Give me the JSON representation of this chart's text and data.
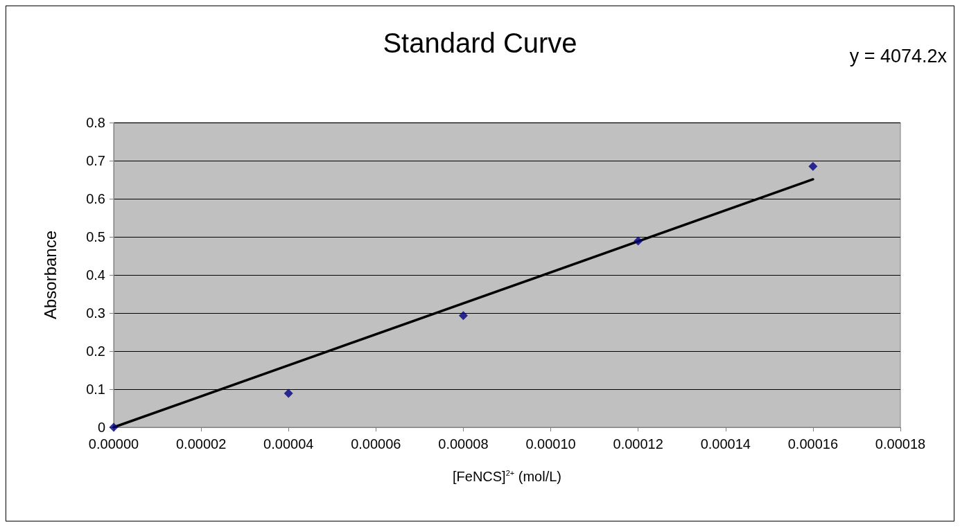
{
  "chart_data": {
    "type": "scatter",
    "title": "Standard Curve",
    "xlabel": "[FeNCS]$^{2+}$ (mol/L)",
    "ylabel": "Absorbance",
    "annotations": [
      "y = 4074.2x"
    ],
    "x": [
      0,
      4e-05,
      8e-05,
      0.00012,
      0.00016
    ],
    "series": [
      {
        "color": "#000080",
        "marker": "diamond",
        "values": [
          0,
          0.089,
          0.293,
          0.489,
          0.685
        ]
      },
      {
        "type": "line",
        "color": "#000000",
        "marker": "none",
        "x": [
          0,
          0.00016
        ],
        "values": [
          0,
          0.651
        ]
      }
    ],
    "xlim": [
      0,
      0.00018
    ],
    "xticks": [
      {
        "value": 0,
        "label": "0.00000"
      },
      {
        "value": 2e-05,
        "label": "0.00002"
      },
      {
        "value": 4e-05,
        "label": "0.00004"
      },
      {
        "value": 6e-05,
        "label": "0.00006"
      },
      {
        "value": 8e-05,
        "label": "0.00008"
      },
      {
        "value": 0.0001,
        "label": "0.00010"
      },
      {
        "value": 0.00012,
        "label": "0.00012"
      },
      {
        "value": 0.00014,
        "label": "0.00014"
      },
      {
        "value": 0.00016,
        "label": "0.00016"
      },
      {
        "value": 0.00018,
        "label": "0.00018"
      }
    ],
    "ylim": [
      0,
      0.8
    ],
    "yticks": [
      0,
      0.1,
      0.2,
      0.3,
      0.4,
      0.5,
      0.6,
      0.7,
      0.8
    ],
    "grid": "y"
  }
}
